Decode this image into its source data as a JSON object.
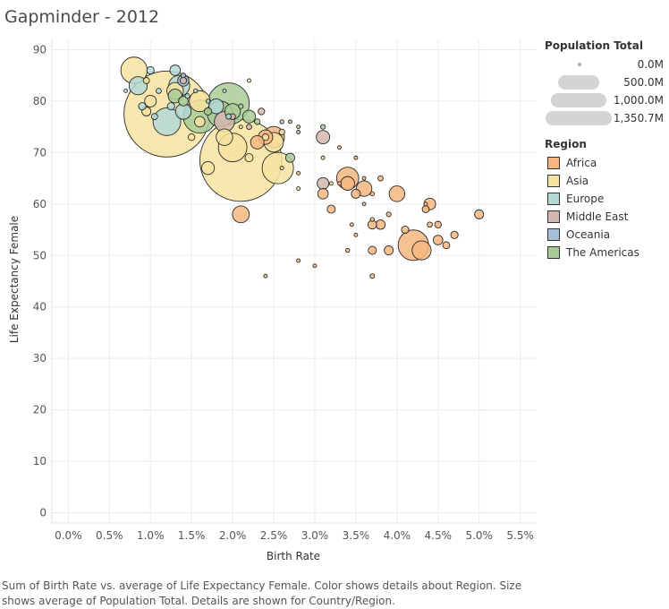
{
  "title": "Gapminder - 2012",
  "caption": "Sum of Birth Rate vs. average of Life Expectancy Female.  Color shows details about Region.  Size shows average of Population Total.  Details are shown for Country/Region.",
  "legend": {
    "size_title": "Population Total",
    "size_items": [
      {
        "label": "0.0M",
        "value": 0
      },
      {
        "label": "500.0M",
        "value": 500
      },
      {
        "label": "1,000.0M",
        "value": 1000
      },
      {
        "label": "1,350.7M",
        "value": 1350.7
      }
    ],
    "region_title": "Region",
    "regions": [
      {
        "name": "Africa",
        "color": "#f7b67f"
      },
      {
        "name": "Asia",
        "color": "#f7e3a0"
      },
      {
        "name": "Europe",
        "color": "#b3d8d6"
      },
      {
        "name": "Middle East",
        "color": "#d3b7ae"
      },
      {
        "name": "Oceania",
        "color": "#a7bfd8"
      },
      {
        "name": "The Americas",
        "color": "#a9cc97"
      }
    ]
  },
  "chart_data": {
    "type": "scatter",
    "title": "Gapminder - 2012",
    "xlabel": "Birth Rate",
    "ylabel": "Life Expectancy Female",
    "xlim": [
      -0.2,
      5.7
    ],
    "ylim": [
      -2,
      92
    ],
    "xticks": [
      0.0,
      0.5,
      1.0,
      1.5,
      2.0,
      2.5,
      3.0,
      3.5,
      4.0,
      4.5,
      5.0,
      5.5
    ],
    "xtick_labels": [
      "0.0%",
      "0.5%",
      "1.0%",
      "1.5%",
      "2.0%",
      "2.5%",
      "3.0%",
      "3.5%",
      "4.0%",
      "4.5%",
      "5.0%",
      "5.5%"
    ],
    "yticks": [
      0,
      10,
      20,
      30,
      40,
      50,
      60,
      70,
      80,
      90
    ],
    "grid": true,
    "legend": "right",
    "size_encoding": "Population Total (M)",
    "points": [
      {
        "region": "Asia",
        "x": 1.2,
        "y": 77.5,
        "pop": 1350
      },
      {
        "region": "Asia",
        "x": 2.1,
        "y": 68.5,
        "pop": 1230
      },
      {
        "region": "Asia",
        "x": 0.8,
        "y": 86,
        "pop": 127
      },
      {
        "region": "Asia",
        "x": 1.6,
        "y": 80,
        "pop": 80
      },
      {
        "region": "Asia",
        "x": 2.0,
        "y": 71,
        "pop": 150
      },
      {
        "region": "Asia",
        "x": 2.55,
        "y": 67,
        "pop": 180
      },
      {
        "region": "Asia",
        "x": 1.9,
        "y": 73,
        "pop": 50
      },
      {
        "region": "Asia",
        "x": 2.5,
        "y": 72,
        "pop": 70
      },
      {
        "region": "Asia",
        "x": 1.7,
        "y": 67,
        "pop": 30
      },
      {
        "region": "Asia",
        "x": 1.3,
        "y": 82,
        "pop": 50
      },
      {
        "region": "Asia",
        "x": 2.2,
        "y": 69,
        "pop": 12
      },
      {
        "region": "Asia",
        "x": 1.5,
        "y": 73,
        "pop": 8
      },
      {
        "region": "Asia",
        "x": 0.95,
        "y": 84,
        "pop": 7
      },
      {
        "region": "Asia",
        "x": 1.0,
        "y": 80,
        "pop": 25
      },
      {
        "region": "Asia",
        "x": 0.95,
        "y": 78,
        "pop": 15
      },
      {
        "region": "Asia",
        "x": 1.6,
        "y": 76,
        "pop": 20
      },
      {
        "region": "Asia",
        "x": 2.4,
        "y": 73,
        "pop": 8
      },
      {
        "region": "Asia",
        "x": 2.6,
        "y": 74,
        "pop": 6
      },
      {
        "region": "Europe",
        "x": 0.85,
        "y": 83,
        "pop": 60
      },
      {
        "region": "Europe",
        "x": 1.3,
        "y": 86,
        "pop": 20
      },
      {
        "region": "Europe",
        "x": 1.35,
        "y": 83,
        "pop": 80
      },
      {
        "region": "Europe",
        "x": 1.0,
        "y": 86,
        "pop": 10
      },
      {
        "region": "Europe",
        "x": 1.2,
        "y": 76,
        "pop": 140
      },
      {
        "region": "Europe",
        "x": 1.4,
        "y": 78,
        "pop": 45
      },
      {
        "region": "Europe",
        "x": 1.8,
        "y": 79,
        "pop": 40
      },
      {
        "region": "Europe",
        "x": 0.9,
        "y": 79,
        "pop": 10
      },
      {
        "region": "Europe",
        "x": 1.1,
        "y": 82,
        "pop": 5
      },
      {
        "region": "Europe",
        "x": 1.45,
        "y": 81,
        "pop": 4
      },
      {
        "region": "Europe",
        "x": 1.55,
        "y": 82,
        "pop": 3
      },
      {
        "region": "Europe",
        "x": 1.25,
        "y": 79,
        "pop": 10
      },
      {
        "region": "Europe",
        "x": 1.7,
        "y": 80,
        "pop": 3
      },
      {
        "region": "Europe",
        "x": 1.05,
        "y": 77,
        "pop": 7
      },
      {
        "region": "Europe",
        "x": 1.95,
        "y": 77,
        "pop": 5
      },
      {
        "region": "The Americas",
        "x": 1.95,
        "y": 79.5,
        "pop": 316
      },
      {
        "region": "The Americas",
        "x": 1.6,
        "y": 77,
        "pop": 200
      },
      {
        "region": "The Americas",
        "x": 1.85,
        "y": 77.5,
        "pop": 120
      },
      {
        "region": "The Americas",
        "x": 1.3,
        "y": 81,
        "pop": 35
      },
      {
        "region": "The Americas",
        "x": 2.0,
        "y": 78,
        "pop": 45
      },
      {
        "region": "The Americas",
        "x": 1.4,
        "y": 80,
        "pop": 17
      },
      {
        "region": "The Americas",
        "x": 2.2,
        "y": 77,
        "pop": 30
      },
      {
        "region": "The Americas",
        "x": 1.7,
        "y": 78,
        "pop": 10
      },
      {
        "region": "The Americas",
        "x": 2.1,
        "y": 79,
        "pop": 4
      },
      {
        "region": "The Americas",
        "x": 2.7,
        "y": 69,
        "pop": 15
      },
      {
        "region": "The Americas",
        "x": 3.1,
        "y": 75,
        "pop": 4
      },
      {
        "region": "The Americas",
        "x": 2.3,
        "y": 76,
        "pop": 6
      },
      {
        "region": "Middle East",
        "x": 1.9,
        "y": 76,
        "pop": 75
      },
      {
        "region": "Middle East",
        "x": 2.35,
        "y": 78,
        "pop": 8
      },
      {
        "region": "Middle East",
        "x": 3.1,
        "y": 73,
        "pop": 33
      },
      {
        "region": "Middle East",
        "x": 3.1,
        "y": 64,
        "pop": 25
      },
      {
        "region": "Middle East",
        "x": 2.2,
        "y": 75,
        "pop": 5
      },
      {
        "region": "Middle East",
        "x": 2.6,
        "y": 76,
        "pop": 3
      },
      {
        "region": "Middle East",
        "x": 1.4,
        "y": 84,
        "pop": 8
      },
      {
        "region": "Middle East",
        "x": 2.0,
        "y": 77,
        "pop": 6
      },
      {
        "region": "Oceania",
        "x": 1.4,
        "y": 84,
        "pop": 23
      },
      {
        "region": "Oceania",
        "x": 1.4,
        "y": 85,
        "pop": 4
      },
      {
        "region": "Africa",
        "x": 4.2,
        "y": 52,
        "pop": 170
      },
      {
        "region": "Africa",
        "x": 3.4,
        "y": 65,
        "pop": 90
      },
      {
        "region": "Africa",
        "x": 2.1,
        "y": 58,
        "pop": 52
      },
      {
        "region": "Africa",
        "x": 4.0,
        "y": 62,
        "pop": 45
      },
      {
        "region": "Africa",
        "x": 4.3,
        "y": 51,
        "pop": 66
      },
      {
        "region": "Africa",
        "x": 2.5,
        "y": 73,
        "pop": 84
      },
      {
        "region": "Africa",
        "x": 2.4,
        "y": 73,
        "pop": 38
      },
      {
        "region": "Africa",
        "x": 2.3,
        "y": 72,
        "pop": 33
      },
      {
        "region": "Africa",
        "x": 3.6,
        "y": 63,
        "pop": 44
      },
      {
        "region": "Africa",
        "x": 4.4,
        "y": 60,
        "pop": 25
      },
      {
        "region": "Africa",
        "x": 3.4,
        "y": 64,
        "pop": 35
      },
      {
        "region": "Africa",
        "x": 3.5,
        "y": 62,
        "pop": 15
      },
      {
        "region": "Africa",
        "x": 3.8,
        "y": 56,
        "pop": 16
      },
      {
        "region": "Africa",
        "x": 4.5,
        "y": 53,
        "pop": 17
      },
      {
        "region": "Africa",
        "x": 3.9,
        "y": 51,
        "pop": 15
      },
      {
        "region": "Africa",
        "x": 3.7,
        "y": 51,
        "pop": 12
      },
      {
        "region": "Africa",
        "x": 4.7,
        "y": 54,
        "pop": 10
      },
      {
        "region": "Africa",
        "x": 5.0,
        "y": 58,
        "pop": 15
      },
      {
        "region": "Africa",
        "x": 3.1,
        "y": 62,
        "pop": 20
      },
      {
        "region": "Africa",
        "x": 3.2,
        "y": 59,
        "pop": 12
      },
      {
        "region": "Africa",
        "x": 3.7,
        "y": 56,
        "pop": 14
      },
      {
        "region": "Africa",
        "x": 4.1,
        "y": 55,
        "pop": 10
      },
      {
        "region": "Africa",
        "x": 4.35,
        "y": 59,
        "pop": 9
      },
      {
        "region": "Africa",
        "x": 4.6,
        "y": 52,
        "pop": 9
      },
      {
        "region": "Africa",
        "x": 3.8,
        "y": 65,
        "pop": 5
      },
      {
        "region": "Africa",
        "x": 4.5,
        "y": 56,
        "pop": 8
      },
      {
        "region": "Africa",
        "x": 3.9,
        "y": 58,
        "pop": 4
      },
      {
        "region": "Africa",
        "x": 4.4,
        "y": 56,
        "pop": 5
      },
      {
        "region": "Africa",
        "x": 3.7,
        "y": 57,
        "pop": 3
      },
      {
        "region": "Africa",
        "x": 3.3,
        "y": 71,
        "pop": 2
      },
      {
        "region": "Africa",
        "x": 3.7,
        "y": 62,
        "pop": 3
      },
      {
        "region": "Africa",
        "x": 3.45,
        "y": 56,
        "pop": 2
      },
      {
        "region": "Africa",
        "x": 3.7,
        "y": 46,
        "pop": 4
      },
      {
        "region": "Africa",
        "x": 3.4,
        "y": 51,
        "pop": 3
      },
      {
        "region": "Africa",
        "x": 2.4,
        "y": 46,
        "pop": 1
      },
      {
        "region": "Africa",
        "x": 2.8,
        "y": 49,
        "pop": 1
      },
      {
        "region": "Africa",
        "x": 3.0,
        "y": 48,
        "pop": 1
      },
      {
        "region": "Africa",
        "x": 3.6,
        "y": 65,
        "pop": 2
      },
      {
        "region": "Africa",
        "x": 3.3,
        "y": 64,
        "pop": 1
      },
      {
        "region": "Africa",
        "x": 3.5,
        "y": 69,
        "pop": 1
      },
      {
        "region": "Africa",
        "x": 2.8,
        "y": 66,
        "pop": 2
      },
      {
        "region": "Africa",
        "x": 3.6,
        "y": 60,
        "pop": 1
      },
      {
        "region": "Africa",
        "x": 3.5,
        "y": 54,
        "pop": 1
      },
      {
        "region": "Africa",
        "x": 4.35,
        "y": 60,
        "pop": 1
      },
      {
        "region": "Asia",
        "x": 2.8,
        "y": 63,
        "pop": 1
      },
      {
        "region": "Asia",
        "x": 2.6,
        "y": 67,
        "pop": 2
      },
      {
        "region": "Asia",
        "x": 3.2,
        "y": 64,
        "pop": 1
      },
      {
        "region": "Asia",
        "x": 3.1,
        "y": 69,
        "pop": 1
      },
      {
        "region": "Asia",
        "x": 2.1,
        "y": 75,
        "pop": 2
      },
      {
        "region": "Asia",
        "x": 2.2,
        "y": 84,
        "pop": 1
      },
      {
        "region": "The Americas",
        "x": 2.8,
        "y": 74,
        "pop": 1
      },
      {
        "region": "The Americas",
        "x": 2.8,
        "y": 75,
        "pop": 1
      },
      {
        "region": "The Americas",
        "x": 2.7,
        "y": 76,
        "pop": 1
      },
      {
        "region": "Europe",
        "x": 1.9,
        "y": 82,
        "pop": 2
      },
      {
        "region": "Europe",
        "x": 0.7,
        "y": 82,
        "pop": 1
      }
    ]
  }
}
